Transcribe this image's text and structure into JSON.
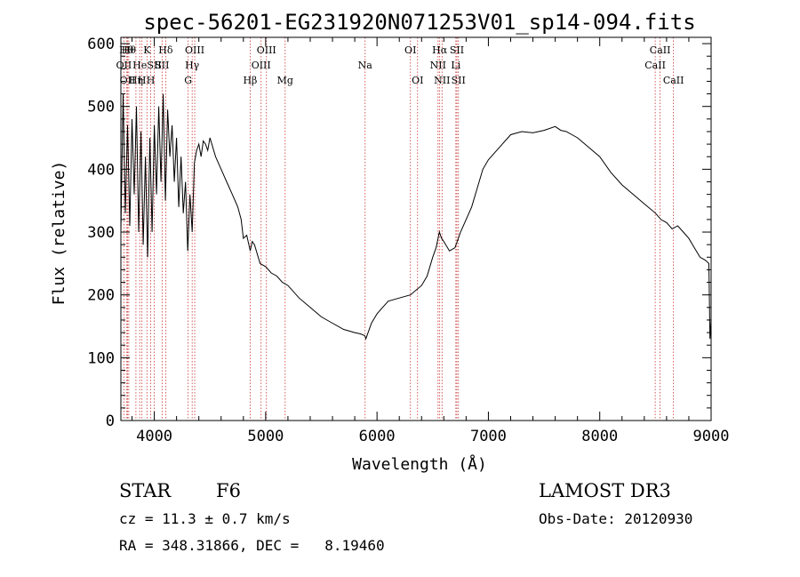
{
  "chart_data": {
    "type": "line",
    "title": "spec-56201-EG231920N071253V01_sp14-094.fits",
    "xlabel": "Wavelength (Å)",
    "ylabel": "Flux (relative)",
    "xlim": [
      3700,
      9000
    ],
    "ylim": [
      0,
      610
    ],
    "x_ticks": [
      4000,
      5000,
      6000,
      7000,
      8000,
      9000
    ],
    "y_ticks": [
      0,
      100,
      200,
      300,
      400,
      500,
      600
    ],
    "series": [
      {
        "name": "flux",
        "x": [
          3700,
          3720,
          3740,
          3760,
          3780,
          3800,
          3820,
          3840,
          3860,
          3880,
          3900,
          3920,
          3940,
          3960,
          3980,
          4000,
          4020,
          4040,
          4060,
          4080,
          4100,
          4120,
          4140,
          4160,
          4180,
          4200,
          4220,
          4240,
          4260,
          4280,
          4300,
          4320,
          4340,
          4360,
          4380,
          4400,
          4420,
          4440,
          4460,
          4480,
          4500,
          4550,
          4600,
          4650,
          4700,
          4750,
          4780,
          4800,
          4830,
          4861,
          4880,
          4900,
          4950,
          5000,
          5050,
          5100,
          5150,
          5200,
          5300,
          5400,
          5500,
          5600,
          5700,
          5800,
          5850,
          5890,
          5900,
          5950,
          6000,
          6050,
          6100,
          6200,
          6300,
          6400,
          6450,
          6500,
          6530,
          6560,
          6580,
          6600,
          6650,
          6700,
          6720,
          6750,
          6800,
          6850,
          6900,
          6950,
          7000,
          7050,
          7100,
          7200,
          7300,
          7400,
          7500,
          7600,
          7650,
          7700,
          7750,
          7800,
          7900,
          8000,
          8100,
          8200,
          8300,
          8400,
          8500,
          8550,
          8600,
          8650,
          8700,
          8750,
          8800,
          8850,
          8900,
          8950,
          8980,
          8990,
          9000
        ],
        "y": [
          300,
          520,
          330,
          470,
          310,
          480,
          360,
          500,
          300,
          460,
          280,
          420,
          260,
          450,
          300,
          470,
          360,
          500,
          380,
          520,
          350,
          495,
          420,
          470,
          380,
          450,
          340,
          420,
          330,
          380,
          270,
          360,
          300,
          410,
          430,
          440,
          420,
          445,
          440,
          430,
          450,
          420,
          400,
          380,
          360,
          340,
          320,
          290,
          295,
          270,
          285,
          280,
          250,
          245,
          235,
          230,
          220,
          215,
          195,
          180,
          165,
          155,
          145,
          140,
          138,
          135,
          130,
          155,
          170,
          180,
          190,
          195,
          200,
          215,
          230,
          260,
          275,
          300,
          290,
          285,
          270,
          275,
          285,
          300,
          320,
          340,
          370,
          400,
          415,
          425,
          435,
          455,
          460,
          458,
          462,
          468,
          462,
          460,
          455,
          450,
          435,
          420,
          395,
          375,
          360,
          345,
          330,
          320,
          315,
          305,
          310,
          300,
          290,
          275,
          260,
          255,
          250,
          130,
          160
        ]
      }
    ],
    "line_markers": [
      {
        "wavelength": 3727,
        "label": "OII",
        "row": 1
      },
      {
        "wavelength": 3750,
        "label": "Hθ",
        "row": 0
      },
      {
        "wavelength": 3760,
        "label": "OII",
        "row": 2
      },
      {
        "wavelength": 3771,
        "label": "Hθ",
        "row": 0
      },
      {
        "wavelength": 3835,
        "label": "Hη",
        "row": 2
      },
      {
        "wavelength": 3869,
        "label": "He",
        "row": 1
      },
      {
        "wavelength": 3889,
        "label": "H",
        "row": 2
      },
      {
        "wavelength": 3934,
        "label": "K",
        "row": 0
      },
      {
        "wavelength": 3968,
        "label": "H",
        "row": 2
      },
      {
        "wavelength": 4000,
        "label": "SII",
        "row": 1
      },
      {
        "wavelength": 4070,
        "label": "SII",
        "row": 1
      },
      {
        "wavelength": 4102,
        "label": "Hδ",
        "row": 0
      },
      {
        "wavelength": 4304,
        "label": "G",
        "row": 2
      },
      {
        "wavelength": 4340,
        "label": "Hγ",
        "row": 1
      },
      {
        "wavelength": 4363,
        "label": "OIII",
        "row": 0
      },
      {
        "wavelength": 4861,
        "label": "Hβ",
        "row": 2
      },
      {
        "wavelength": 4959,
        "label": "OIII",
        "row": 1
      },
      {
        "wavelength": 5007,
        "label": "OIII",
        "row": 0
      },
      {
        "wavelength": 5175,
        "label": "Mg",
        "row": 2
      },
      {
        "wavelength": 5893,
        "label": "Na",
        "row": 1
      },
      {
        "wavelength": 6300,
        "label": "OI",
        "row": 0
      },
      {
        "wavelength": 6364,
        "label": "OI",
        "row": 2
      },
      {
        "wavelength": 6548,
        "label": "NII",
        "row": 1
      },
      {
        "wavelength": 6563,
        "label": "Hα",
        "row": 0
      },
      {
        "wavelength": 6584,
        "label": "NII",
        "row": 2
      },
      {
        "wavelength": 6708,
        "label": "Li",
        "row": 1
      },
      {
        "wavelength": 6717,
        "label": "SII",
        "row": 0
      },
      {
        "wavelength": 6731,
        "label": "SII",
        "row": 2
      },
      {
        "wavelength": 8498,
        "label": "CaII",
        "row": 1
      },
      {
        "wavelength": 8542,
        "label": "CaII",
        "row": 0
      },
      {
        "wavelength": 8662,
        "label": "CaII",
        "row": 2
      }
    ]
  },
  "info": {
    "class": "STAR",
    "subclass": "F6",
    "survey": "LAMOST DR3",
    "cz": "cz = 11.3 ± 0.7 km/s",
    "obs_date": "Obs-Date: 20120930",
    "coords": "RA = 348.31866, DEC =   8.19460"
  }
}
